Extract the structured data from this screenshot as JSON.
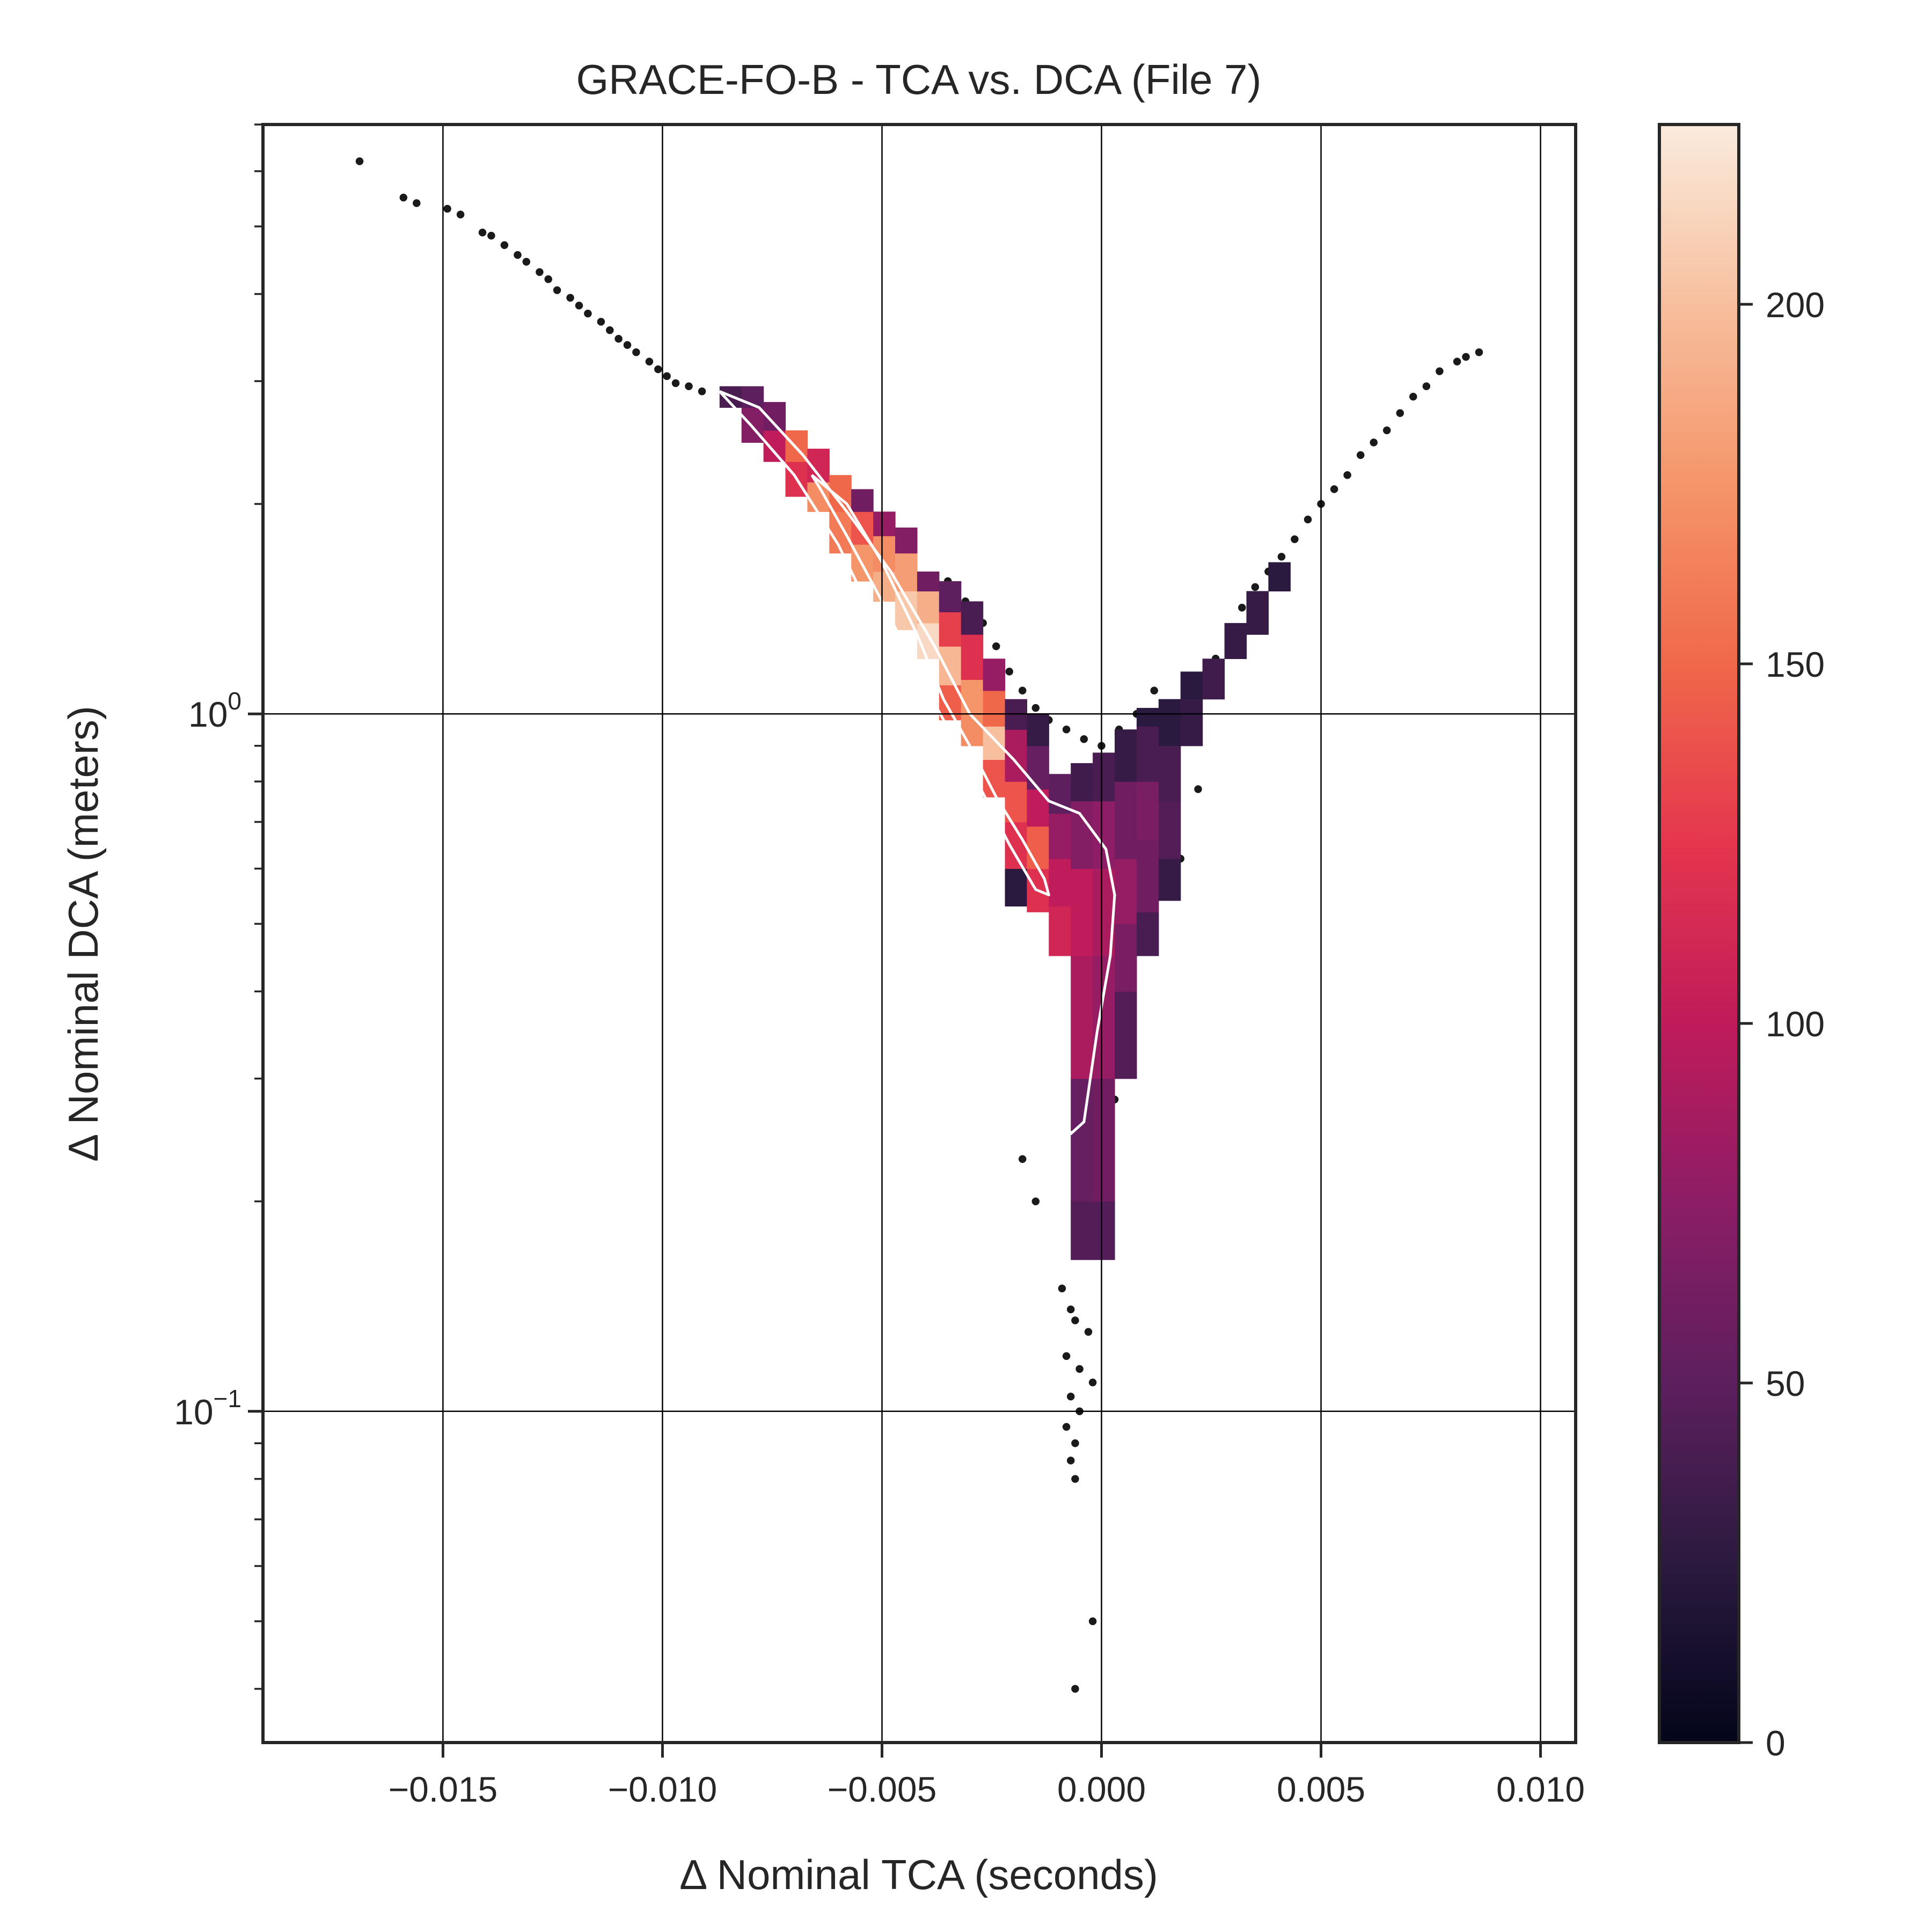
{
  "chart_data": {
    "type": "heatmap",
    "title": "GRACE-FO-B - TCA vs. DCA (File 7)",
    "xlabel": "Δ Nominal TCA (seconds)",
    "ylabel": "Δ Nominal DCA (meters)",
    "x_scale": "linear",
    "y_scale": "log",
    "xlim": [
      -0.0191,
      0.0108
    ],
    "ylim": [
      0.0335,
      7.0
    ],
    "grid": true,
    "x_ticks": [
      {
        "value": -0.015,
        "label": "−0.015"
      },
      {
        "value": -0.01,
        "label": "−0.010"
      },
      {
        "value": -0.005,
        "label": "−0.005"
      },
      {
        "value": 0.0,
        "label": "0.000"
      },
      {
        "value": 0.005,
        "label": "0.005"
      },
      {
        "value": 0.01,
        "label": "0.010"
      }
    ],
    "y_ticks": [
      {
        "value": 1.0,
        "base": "10",
        "exponent": "0"
      },
      {
        "value": 0.1,
        "base": "10",
        "exponent": "−1"
      }
    ],
    "colorbar": {
      "min": 0,
      "max": 225,
      "ticks": [
        {
          "value": 0,
          "label": "0"
        },
        {
          "value": 50,
          "label": "50"
        },
        {
          "value": 100,
          "label": "100"
        },
        {
          "value": 150,
          "label": "150"
        },
        {
          "value": 200,
          "label": "200"
        }
      ],
      "colors": [
        "#03051a",
        "#2b1a3f",
        "#5d1f5e",
        "#8c1d66",
        "#c01b5a",
        "#e5364e",
        "#f0684a",
        "#f5956a",
        "#f7bf9e",
        "#faebdd"
      ],
      "position": "right"
    },
    "heatmap_bins": {
      "x_edges": [
        -0.0087,
        -0.0082,
        -0.0077,
        -0.0072,
        -0.0067,
        -0.0062,
        -0.0057,
        -0.0052,
        -0.0047,
        -0.0042,
        -0.0037,
        -0.0032,
        -0.0027,
        -0.0022,
        -0.0017,
        -0.0012,
        -0.0007,
        -0.0002,
        0.0003,
        0.0008,
        0.0013,
        0.0018,
        0.0023,
        0.0028,
        0.0033,
        0.0038,
        0.0043
      ],
      "columns": [
        {
          "x_bin": 0,
          "cells": [
            [
              2.75,
              2.95,
              40
            ]
          ]
        },
        {
          "x_bin": 1,
          "cells": [
            [
              2.45,
              2.75,
              70
            ],
            [
              2.75,
              2.95,
              50
            ]
          ]
        },
        {
          "x_bin": 2,
          "cells": [
            [
              2.3,
              2.55,
              100
            ],
            [
              2.55,
              2.8,
              60
            ]
          ]
        },
        {
          "x_bin": 3,
          "cells": [
            [
              2.05,
              2.3,
              120
            ],
            [
              2.3,
              2.55,
              150
            ]
          ]
        },
        {
          "x_bin": 4,
          "cells": [
            [
              1.95,
              2.15,
              170
            ],
            [
              2.15,
              2.4,
              110
            ]
          ]
        },
        {
          "x_bin": 5,
          "cells": [
            [
              1.7,
              1.95,
              160
            ],
            [
              1.95,
              2.2,
              150
            ]
          ]
        },
        {
          "x_bin": 6,
          "cells": [
            [
              1.55,
              1.75,
              175
            ],
            [
              1.75,
              1.95,
              140
            ],
            [
              1.95,
              2.1,
              60
            ]
          ]
        },
        {
          "x_bin": 7,
          "cells": [
            [
              1.45,
              1.6,
              190
            ],
            [
              1.6,
              1.8,
              170
            ],
            [
              1.8,
              1.95,
              80
            ]
          ]
        },
        {
          "x_bin": 8,
          "cells": [
            [
              1.32,
              1.5,
              205
            ],
            [
              1.5,
              1.7,
              180
            ],
            [
              1.7,
              1.85,
              70
            ]
          ]
        },
        {
          "x_bin": 9,
          "cells": [
            [
              1.2,
              1.35,
              215
            ],
            [
              1.35,
              1.5,
              190
            ],
            [
              1.5,
              1.6,
              60
            ]
          ]
        },
        {
          "x_bin": 10,
          "cells": [
            [
              0.98,
              1.1,
              145
            ],
            [
              1.1,
              1.25,
              195
            ],
            [
              1.25,
              1.4,
              130
            ],
            [
              1.4,
              1.55,
              50
            ]
          ]
        },
        {
          "x_bin": 11,
          "cells": [
            [
              0.9,
              1.0,
              170
            ],
            [
              1.0,
              1.12,
              175
            ],
            [
              1.12,
              1.3,
              120
            ],
            [
              1.3,
              1.45,
              40
            ]
          ]
        },
        {
          "x_bin": 12,
          "cells": [
            [
              0.76,
              0.86,
              140
            ],
            [
              0.86,
              0.96,
              200
            ],
            [
              0.96,
              1.08,
              150
            ],
            [
              1.08,
              1.2,
              80
            ]
          ]
        },
        {
          "x_bin": 13,
          "cells": [
            [
              0.53,
              0.6,
              25
            ],
            [
              0.6,
              0.7,
              120
            ],
            [
              0.7,
              0.8,
              140
            ],
            [
              0.8,
              0.95,
              90
            ],
            [
              0.95,
              1.05,
              40
            ]
          ]
        },
        {
          "x_bin": 14,
          "cells": [
            [
              0.52,
              0.6,
              120
            ],
            [
              0.6,
              0.69,
              145
            ],
            [
              0.69,
              0.78,
              100
            ],
            [
              0.78,
              0.9,
              55
            ],
            [
              0.9,
              1.0,
              30
            ]
          ]
        },
        {
          "x_bin": 15,
          "cells": [
            [
              0.45,
              0.53,
              110
            ],
            [
              0.53,
              0.62,
              100
            ],
            [
              0.62,
              0.72,
              80
            ],
            [
              0.72,
              0.82,
              50
            ]
          ]
        },
        {
          "x_bin": 16,
          "cells": [
            [
              0.165,
              0.2,
              45
            ],
            [
              0.2,
              0.3,
              55
            ],
            [
              0.3,
              0.45,
              90
            ],
            [
              0.45,
              0.6,
              100
            ],
            [
              0.6,
              0.75,
              70
            ],
            [
              0.75,
              0.85,
              35
            ]
          ]
        },
        {
          "x_bin": 17,
          "cells": [
            [
              0.165,
              0.2,
              45
            ],
            [
              0.2,
              0.3,
              60
            ],
            [
              0.3,
              0.45,
              80
            ],
            [
              0.45,
              0.6,
              90
            ],
            [
              0.6,
              0.75,
              75
            ],
            [
              0.75,
              0.88,
              40
            ]
          ]
        },
        {
          "x_bin": 18,
          "cells": [
            [
              0.3,
              0.4,
              45
            ],
            [
              0.4,
              0.5,
              65
            ],
            [
              0.5,
              0.62,
              80
            ],
            [
              0.62,
              0.8,
              60
            ],
            [
              0.8,
              0.95,
              30
            ]
          ]
        },
        {
          "x_bin": 19,
          "cells": [
            [
              0.45,
              0.52,
              40
            ],
            [
              0.52,
              0.66,
              60
            ],
            [
              0.66,
              0.8,
              65
            ],
            [
              0.8,
              0.96,
              40
            ],
            [
              0.96,
              1.02,
              25
            ]
          ]
        },
        {
          "x_bin": 20,
          "cells": [
            [
              0.54,
              0.62,
              30
            ],
            [
              0.62,
              0.75,
              45
            ],
            [
              0.75,
              0.9,
              40
            ],
            [
              0.9,
              1.05,
              25
            ]
          ]
        },
        {
          "x_bin": 21,
          "cells": [
            [
              0.9,
              1.05,
              30
            ],
            [
              1.05,
              1.15,
              25
            ]
          ]
        },
        {
          "x_bin": 22,
          "cells": [
            [
              1.05,
              1.2,
              35
            ]
          ]
        },
        {
          "x_bin": 23,
          "cells": [
            [
              1.2,
              1.35,
              30
            ]
          ]
        },
        {
          "x_bin": 24,
          "cells": [
            [
              1.3,
              1.5,
              30
            ]
          ]
        },
        {
          "x_bin": 25,
          "cells": [
            [
              1.5,
              1.65,
              25
            ]
          ]
        }
      ]
    },
    "contours": [
      {
        "level": "outer",
        "color": "#ffffff",
        "points": [
          [
            -0.0087,
            2.9
          ],
          [
            -0.0078,
            2.75
          ],
          [
            -0.0068,
            2.35
          ],
          [
            -0.0058,
            1.95
          ],
          [
            -0.0048,
            1.6
          ],
          [
            -0.0038,
            1.25
          ],
          [
            -0.003,
            1.0
          ],
          [
            -0.002,
            0.86
          ],
          [
            -0.0012,
            0.75
          ],
          [
            -0.0005,
            0.72
          ],
          [
            0.0001,
            0.64
          ],
          [
            0.0003,
            0.55
          ],
          [
            0.0002,
            0.45
          ],
          [
            -0.0001,
            0.35
          ],
          [
            -0.0004,
            0.26
          ],
          [
            -0.0007,
            0.25
          ],
          [
            -0.001,
            0.28
          ],
          [
            -0.0016,
            0.36
          ],
          [
            -0.0022,
            0.48
          ],
          [
            -0.0027,
            0.62
          ],
          [
            -0.0033,
            0.78
          ],
          [
            -0.004,
            0.95
          ],
          [
            -0.005,
            1.3
          ],
          [
            -0.006,
            1.75
          ],
          [
            -0.007,
            2.2
          ],
          [
            -0.008,
            2.6
          ],
          [
            -0.0087,
            2.9
          ]
        ]
      },
      {
        "level": "inner",
        "color": "#ffffff",
        "points": [
          [
            -0.0066,
            2.2
          ],
          [
            -0.0058,
            2.0
          ],
          [
            -0.005,
            1.65
          ],
          [
            -0.0042,
            1.3
          ],
          [
            -0.0036,
            1.05
          ],
          [
            -0.003,
            0.9
          ],
          [
            -0.0024,
            0.76
          ],
          [
            -0.0018,
            0.66
          ],
          [
            -0.0013,
            0.58
          ],
          [
            -0.0012,
            0.55
          ],
          [
            -0.0015,
            0.56
          ],
          [
            -0.0021,
            0.65
          ],
          [
            -0.0027,
            0.77
          ],
          [
            -0.0034,
            0.93
          ],
          [
            -0.0042,
            1.15
          ],
          [
            -0.005,
            1.45
          ],
          [
            -0.0058,
            1.8
          ],
          [
            -0.0064,
            2.1
          ],
          [
            -0.0066,
            2.2
          ]
        ]
      }
    ],
    "scatter_outliers": [
      [
        -0.0169,
        6.2
      ],
      [
        -0.0159,
        5.5
      ],
      [
        -0.0156,
        5.4
      ],
      [
        -0.0149,
        5.3
      ],
      [
        -0.0146,
        5.2
      ],
      [
        -0.0141,
        4.9
      ],
      [
        -0.0139,
        4.85
      ],
      [
        -0.0136,
        4.7
      ],
      [
        -0.0133,
        4.55
      ],
      [
        -0.0131,
        4.45
      ],
      [
        -0.0128,
        4.3
      ],
      [
        -0.0126,
        4.2
      ],
      [
        -0.0124,
        4.05
      ],
      [
        -0.0121,
        3.95
      ],
      [
        -0.0119,
        3.85
      ],
      [
        -0.0117,
        3.75
      ],
      [
        -0.0114,
        3.65
      ],
      [
        -0.0112,
        3.55
      ],
      [
        -0.011,
        3.45
      ],
      [
        -0.0108,
        3.38
      ],
      [
        -0.0106,
        3.3
      ],
      [
        -0.0103,
        3.2
      ],
      [
        -0.0101,
        3.12
      ],
      [
        -0.0099,
        3.05
      ],
      [
        -0.0097,
        2.98
      ],
      [
        -0.0094,
        2.95
      ],
      [
        -0.0091,
        2.9
      ],
      [
        -0.0035,
        1.55
      ],
      [
        -0.0031,
        1.45
      ],
      [
        -0.0027,
        1.35
      ],
      [
        -0.0024,
        1.25
      ],
      [
        -0.0021,
        1.15
      ],
      [
        -0.0018,
        1.08
      ],
      [
        -0.0015,
        1.02
      ],
      [
        -0.0012,
        0.98
      ],
      [
        -0.0008,
        0.95
      ],
      [
        -0.0004,
        0.92
      ],
      [
        0.0,
        0.9
      ],
      [
        0.0004,
        0.95
      ],
      [
        0.0008,
        1.0
      ],
      [
        0.0012,
        1.08
      ],
      [
        0.0016,
        1.0
      ],
      [
        0.002,
        0.92
      ],
      [
        0.0022,
        0.78
      ],
      [
        0.0018,
        0.62
      ],
      [
        0.0012,
        0.5
      ],
      [
        0.0006,
        0.4
      ],
      [
        0.0004,
        0.33
      ],
      [
        0.0003,
        0.28
      ],
      [
        0.0002,
        0.24
      ],
      [
        -0.0018,
        0.23
      ],
      [
        -0.0015,
        0.2
      ],
      [
        0.0002,
        0.19
      ],
      [
        0.0026,
        1.2
      ],
      [
        0.0029,
        1.3
      ],
      [
        0.0032,
        1.42
      ],
      [
        0.0035,
        1.52
      ],
      [
        0.0038,
        1.6
      ],
      [
        0.0041,
        1.68
      ],
      [
        0.0044,
        1.78
      ],
      [
        0.0047,
        1.9
      ],
      [
        0.005,
        2.0
      ],
      [
        0.0053,
        2.1
      ],
      [
        0.0056,
        2.2
      ],
      [
        0.0059,
        2.35
      ],
      [
        0.0062,
        2.45
      ],
      [
        0.0065,
        2.55
      ],
      [
        0.0068,
        2.7
      ],
      [
        0.0071,
        2.85
      ],
      [
        0.0074,
        2.95
      ],
      [
        0.0077,
        3.1
      ],
      [
        0.0081,
        3.2
      ],
      [
        0.0083,
        3.25
      ],
      [
        0.0086,
        3.3
      ],
      [
        -0.0009,
        0.15
      ],
      [
        -0.0007,
        0.14
      ],
      [
        -0.0006,
        0.135
      ],
      [
        -0.0003,
        0.13
      ],
      [
        -0.0008,
        0.12
      ],
      [
        -0.0005,
        0.115
      ],
      [
        -0.0002,
        0.11
      ],
      [
        -0.0007,
        0.105
      ],
      [
        -0.0005,
        0.1
      ],
      [
        -0.0008,
        0.095
      ],
      [
        -0.0006,
        0.09
      ],
      [
        -0.0007,
        0.085
      ],
      [
        -0.0006,
        0.08
      ],
      [
        -0.0002,
        0.05
      ],
      [
        -0.0006,
        0.04
      ]
    ]
  }
}
